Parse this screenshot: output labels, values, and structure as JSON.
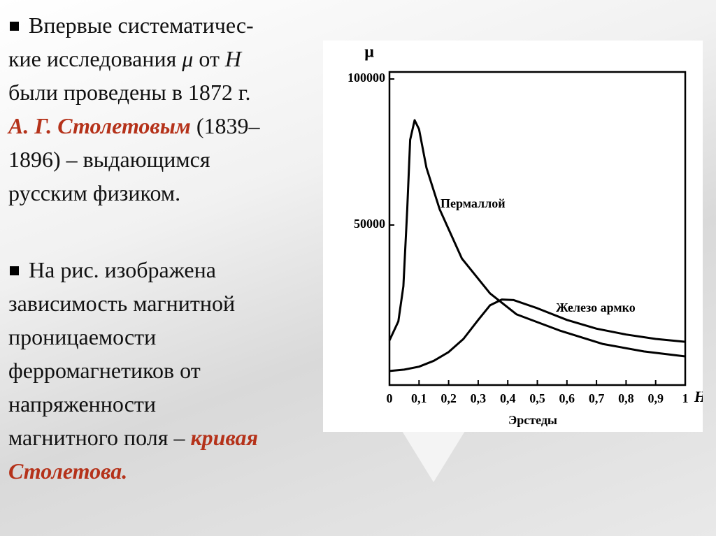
{
  "text1": {
    "l1": "Впервые систематичес-",
    "l2a": "кие исследования",
    "mu": "μ",
    "l2b": "от",
    "H": "H",
    "l3": "были проведены в 1872 г.",
    "name": "А. Г. Столетовым",
    "l4": "(1839–",
    "l5": "1896) – выдающимся",
    "l6": "русским физиком."
  },
  "text2": {
    "l1": "На рис. изображена",
    "l2": "зависимость магнитной",
    "l3": "проницаемости",
    "l4": "ферромагнетиков от",
    "l5": "напряженности",
    "l6": "магнитного поля –",
    "em1": "кривая",
    "em2": "Столетова."
  },
  "chart_data": {
    "type": "line",
    "ylabel": "μ",
    "xlabel": "H",
    "xunit": "Эрстеды",
    "xlim": [
      0,
      1
    ],
    "ylim": [
      -4800,
      102400
    ],
    "xticks": [
      0,
      {
        "value": 0.1,
        "label": "0,1"
      },
      {
        "value": 0.2,
        "label": "0,2"
      },
      {
        "value": 0.3,
        "label": "0,3"
      },
      {
        "value": 0.4,
        "label": "0,4"
      },
      {
        "value": 0.5,
        "label": "0,5"
      },
      {
        "value": 0.6,
        "label": "0,6"
      },
      {
        "value": 0.7,
        "label": "0,7"
      },
      {
        "value": 0.8,
        "label": "0,8"
      },
      {
        "value": 0.9,
        "label": "0,9"
      },
      1
    ],
    "yticks": [
      50000,
      100000
    ],
    "series": [
      {
        "name": "Пермаллой",
        "color": "#000000",
        "x": [
          0,
          0.03,
          0.047,
          0.06,
          0.07,
          0.085,
          0.1,
          0.125,
          0.17,
          0.245,
          0.34,
          0.43,
          0.575,
          0.72,
          0.86,
          1.0
        ],
        "values": [
          10500,
          17000,
          29000,
          55300,
          79200,
          85900,
          82800,
          69600,
          55300,
          38500,
          26600,
          19400,
          13900,
          9300,
          6700,
          5000
        ]
      },
      {
        "name": "Железо армко",
        "color": "#000000",
        "x": [
          0,
          0.05,
          0.1,
          0.15,
          0.2,
          0.25,
          0.3,
          0.34,
          0.38,
          0.42,
          0.5,
          0.6,
          0.7,
          0.8,
          0.9,
          1.0
        ],
        "values": [
          0,
          500,
          1500,
          3500,
          6500,
          11000,
          17500,
          22500,
          24500,
          24300,
          21500,
          17500,
          14500,
          12500,
          11000,
          10000
        ]
      }
    ]
  }
}
